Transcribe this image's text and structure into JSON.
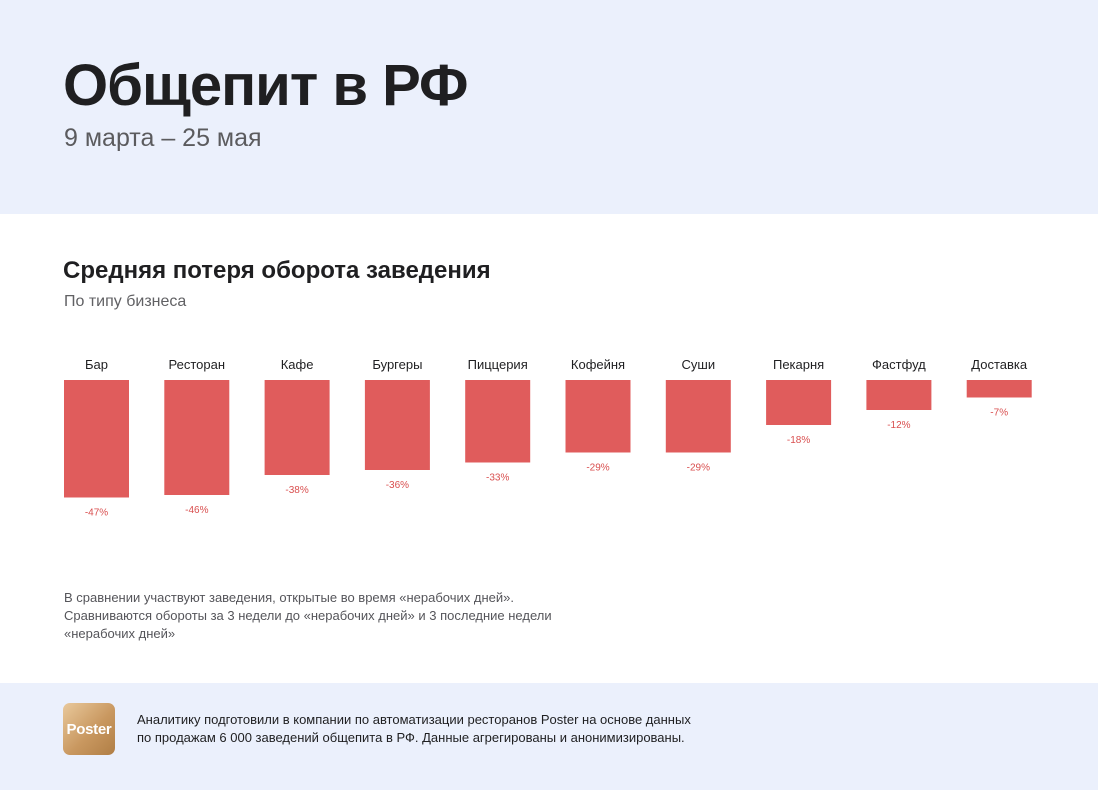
{
  "header": {
    "title": "Общепит в РФ",
    "subtitle": "9 марта – 25 мая"
  },
  "section": {
    "title": "Средняя потеря оборота заведения",
    "subtitle": "По типу бизнеса"
  },
  "colors": {
    "header_bg": "#ebf0fc",
    "bar": "#e05c5c",
    "value_label": "#d94f4f"
  },
  "chart_data": {
    "type": "bar",
    "orientation": "vertical-down",
    "title": "Средняя потеря оборота заведения",
    "subtitle": "По типу бизнеса",
    "categories": [
      "Бар",
      "Ресторан",
      "Кафе",
      "Бургеры",
      "Пиццерия",
      "Кофейня",
      "Суши",
      "Пекарня",
      "Фастфуд",
      "Доставка"
    ],
    "values": [
      -47,
      -46,
      -38,
      -36,
      -33,
      -29,
      -29,
      -18,
      -12,
      -7
    ],
    "value_labels": [
      "-47%",
      "-46%",
      "-38%",
      "-36%",
      "-33%",
      "-29%",
      "-29%",
      "-18%",
      "-12%",
      "-7%"
    ],
    "unit": "%",
    "ylim": [
      -50,
      0
    ],
    "xlabel": "",
    "ylabel": "",
    "grid": false,
    "legend": "none"
  },
  "note": {
    "lines": [
      "В сравнении участвуют заведения, открытые во время «нерабочих дней».",
      "Сравниваются обороты за 3 недели до «нерабочих дней» и 3 последние недели",
      "«нерабочих дней»"
    ]
  },
  "footer": {
    "logo_text": "Poster",
    "lines": [
      "Аналитику подготовили в компании по автоматизации ресторанов Poster на основе данных",
      "по продажам 6 000 заведений общепита в РФ. Данные агрегированы и анонимизированы."
    ]
  }
}
